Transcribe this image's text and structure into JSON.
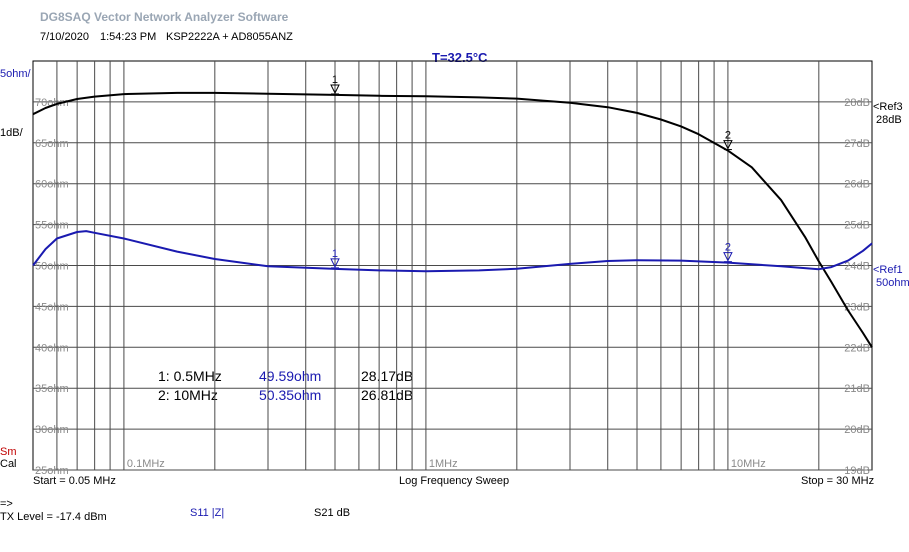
{
  "app_title": "DG8SAQ Vector Network Analyzer Software",
  "date": "7/10/2020",
  "time": "1:54:23 PM",
  "device": "KSP2222A + AD8055ANZ",
  "temperature": "T=32.5°C",
  "left_scale_top": "5ohm/",
  "left_scale_bottom": "1dB/",
  "ref3_label": "<Ref3",
  "ref3_value": "28dB",
  "ref1_label": "<Ref1",
  "ref1_value": "50ohm",
  "sm_label": "Sm",
  "cal_label": "Cal",
  "start_label": "Start = 0.05 MHz",
  "sweep_label": "Log Frequency Sweep",
  "stop_label": "Stop = 30 MHz",
  "arrow_label": "=>",
  "tx_level": "TX Level = -17.4 dBm",
  "s11_label": "S11  |Z|",
  "s21_label": "S21  dB",
  "markers": [
    {
      "id": "1",
      "freq": "1: 0.5MHz",
      "z": "49.59ohm",
      "db": "28.17dB"
    },
    {
      "id": "2",
      "freq": "2: 10MHz",
      "z": "50.35ohm",
      "db": "26.81dB"
    }
  ],
  "chart_data": {
    "type": "line",
    "title": "T=32.5°C",
    "xlabel": "Log Frequency Sweep",
    "x_scale": "log",
    "xlim_mhz": [
      0.05,
      30
    ],
    "x_tick_labels": [
      {
        "mhz": 0.1,
        "label": "0.1MHz"
      },
      {
        "mhz": 1,
        "label": "1MHz"
      },
      {
        "mhz": 10,
        "label": "10MHz"
      }
    ],
    "left_axis": {
      "unit": "ohm",
      "ylim": [
        25,
        75
      ],
      "ticks": [
        70,
        65,
        60,
        55,
        50,
        45,
        40,
        35,
        30,
        25
      ],
      "tick_labels": [
        "70ohm",
        "65ohm",
        "60ohm",
        "55ohm",
        "50ohm",
        "45ohm",
        "40ohm",
        "35ohm",
        "30ohm",
        "25ohm"
      ]
    },
    "right_axis": {
      "unit": "dB",
      "ylim": [
        19,
        29
      ],
      "ticks": [
        28,
        27,
        26,
        25,
        24,
        23,
        22,
        21,
        20,
        19
      ],
      "tick_labels": [
        "28dB",
        "27dB",
        "26dB",
        "25dB",
        "24dB",
        "23dB",
        "22dB",
        "21dB",
        "20dB",
        "19dB"
      ]
    },
    "grid": true,
    "series": [
      {
        "name": "S21 dB",
        "axis": "right",
        "color": "#000000",
        "x": [
          0.05,
          0.055,
          0.06,
          0.07,
          0.08,
          0.1,
          0.15,
          0.2,
          0.3,
          0.5,
          0.7,
          1,
          1.5,
          2,
          3,
          4,
          5,
          6,
          7,
          8,
          10,
          12,
          15,
          18,
          20,
          22,
          25,
          28,
          30
        ],
        "values": [
          27.7,
          27.85,
          27.95,
          28.07,
          28.13,
          28.19,
          28.22,
          28.22,
          28.2,
          28.17,
          28.15,
          28.14,
          28.11,
          28.08,
          27.98,
          27.87,
          27.73,
          27.57,
          27.4,
          27.21,
          26.81,
          26.4,
          25.6,
          24.7,
          24.1,
          23.6,
          22.9,
          22.35,
          22.0
        ]
      },
      {
        "name": "S11 |Z|",
        "axis": "left",
        "color": "#1a1ab0",
        "x": [
          0.05,
          0.055,
          0.06,
          0.07,
          0.075,
          0.08,
          0.1,
          0.15,
          0.2,
          0.3,
          0.5,
          0.7,
          1,
          1.5,
          2,
          3,
          4,
          5,
          7,
          10,
          15,
          20,
          22,
          25,
          28,
          30
        ],
        "values": [
          50.0,
          52.0,
          53.3,
          54.1,
          54.2,
          54.0,
          53.3,
          51.7,
          50.8,
          49.9,
          49.59,
          49.4,
          49.3,
          49.4,
          49.6,
          50.2,
          50.55,
          50.65,
          50.6,
          50.35,
          49.9,
          49.55,
          49.8,
          50.6,
          51.8,
          52.7
        ]
      }
    ],
    "markers": [
      {
        "label": "1",
        "x": 0.5,
        "z_ohm": 49.59,
        "s21_db": 28.17
      },
      {
        "label": "2",
        "x": 10,
        "z_ohm": 50.35,
        "s21_db": 26.81
      }
    ]
  }
}
